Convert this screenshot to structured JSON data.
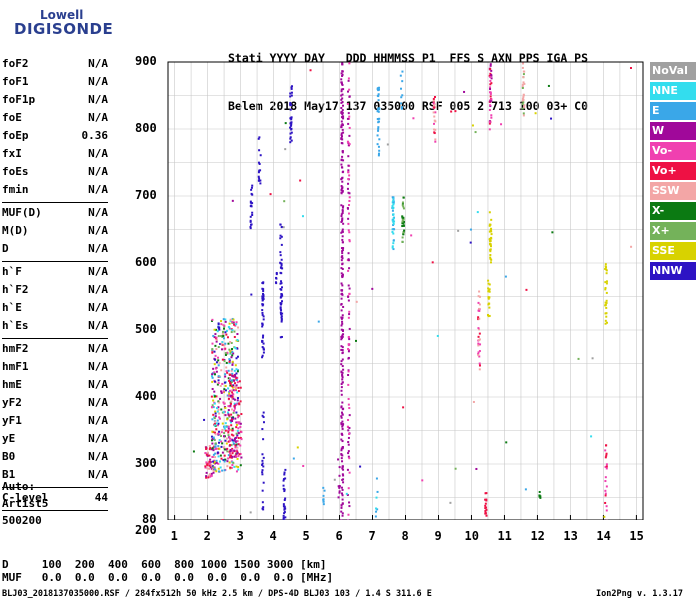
{
  "logo": {
    "top": "Lowell",
    "bottom": "DIGISONDE"
  },
  "header": {
    "line1": "Stati YYYY DAY   DDD HHMMSS P1  FFS S AXN PPS IGA PS",
    "line2": "Belem 2018 May17 137 035000 RSF 005 2 713 100 03+ C0"
  },
  "params": [
    {
      "name": "foF2",
      "value": "N/A"
    },
    {
      "name": "foF1",
      "value": "N/A"
    },
    {
      "name": "foF1p",
      "value": "N/A"
    },
    {
      "name": "foE",
      "value": "N/A"
    },
    {
      "name": "foEp",
      "value": "0.36"
    },
    {
      "name": "fxI",
      "value": "N/A"
    },
    {
      "name": "foEs",
      "value": "N/A"
    },
    {
      "name": "fmin",
      "value": "N/A"
    },
    {
      "name": "MUF(D)",
      "value": "N/A"
    },
    {
      "name": "M(D)",
      "value": "N/A"
    },
    {
      "name": "D",
      "value": "N/A"
    },
    {
      "name": "h`F",
      "value": "N/A"
    },
    {
      "name": "h`F2",
      "value": "N/A"
    },
    {
      "name": "h`E",
      "value": "N/A"
    },
    {
      "name": "h`Es",
      "value": "N/A"
    },
    {
      "name": "hmF2",
      "value": "N/A"
    },
    {
      "name": "hmF1",
      "value": "N/A"
    },
    {
      "name": "hmE",
      "value": "N/A"
    },
    {
      "name": "yF2",
      "value": "N/A"
    },
    {
      "name": "yF1",
      "value": "N/A"
    },
    {
      "name": "yE",
      "value": "N/A"
    },
    {
      "name": "B0",
      "value": "N/A"
    },
    {
      "name": "B1",
      "value": "N/A"
    },
    {
      "name": "C-level",
      "value": "44"
    }
  ],
  "auto": {
    "line1": "Auto:",
    "line2": "Artist5",
    "line3": "500200"
  },
  "legend": [
    {
      "label": "NoVal",
      "color": "#a0a0a0"
    },
    {
      "label": "NNE",
      "color": "#33ddee"
    },
    {
      "label": "E",
      "color": "#3aa7e8"
    },
    {
      "label": "W",
      "color": "#a0089a"
    },
    {
      "label": "Vo-",
      "color": "#f040b0"
    },
    {
      "label": "Vo+",
      "color": "#ee1144"
    },
    {
      "label": "SSW",
      "color": "#f3a6a6"
    },
    {
      "label": "X-",
      "color": "#0b7a12"
    },
    {
      "label": "X+",
      "color": "#74b25a"
    },
    {
      "label": "SSE",
      "color": "#d8d200"
    },
    {
      "label": "NNW",
      "color": "#2d13c4"
    }
  ],
  "axes": {
    "x_ticks": [
      "1",
      "2",
      "3",
      "4",
      "5",
      "6",
      "7",
      "8",
      "9",
      "10",
      "11",
      "12",
      "13",
      "14",
      "15"
    ],
    "y_ticks": [
      "900",
      "800",
      "700",
      "600",
      "500",
      "400",
      "300",
      "200",
      "80"
    ]
  },
  "footer": {
    "d_row": "D     100  200  400  600  800 1000 1500 3000 [km]",
    "muf_row": "MUF   0.0  0.0  0.0  0.0  0.0  0.0  0.0  0.0 [MHz]",
    "info": "BLJ03_2018137035000.RSF / 284fx512h 50 kHz 2.5 km / DPS-4D BLJ03 103 / 1.4 S 311.6 E",
    "version": "Ion2Png v. 1.3.17"
  }
}
